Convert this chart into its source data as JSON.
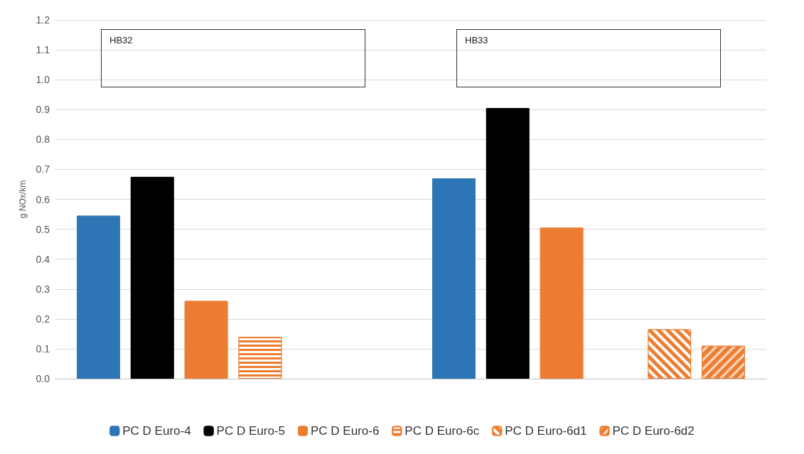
{
  "chart_data": {
    "type": "bar",
    "ylabel": "g NOx/km",
    "categories": [
      null,
      null
    ],
    "annotations": [
      "HB32",
      "HB33"
    ],
    "series": [
      {
        "name": "PC D Euro-4",
        "color": "#2e75b6",
        "values": [
          0.545,
          0.67
        ]
      },
      {
        "name": "PC D Euro-5",
        "color": "#000000",
        "values": [
          0.675,
          0.905
        ]
      },
      {
        "name": "PC D Euro-6",
        "color": "#ed7d31",
        "values": [
          0.26,
          0.505
        ]
      },
      {
        "name": "PC D Euro-6c",
        "color": "#ed7d31",
        "values": [
          0.14,
          null
        ]
      },
      {
        "name": "PC D Euro-6d1",
        "color": "#ed7d31",
        "values": [
          null,
          0.165
        ]
      },
      {
        "name": "PC D Euro-6d2",
        "color": "#ed7d31",
        "values": [
          null,
          0.11
        ]
      }
    ],
    "ylim": [
      0,
      1.2
    ],
    "yticks": [
      {
        "value": 0,
        "label": "0.0"
      },
      {
        "value": 0.1,
        "label": "0.1"
      },
      {
        "value": 0.2,
        "label": "0.2"
      },
      {
        "value": 0.3,
        "label": "0.3"
      },
      {
        "value": 0.4,
        "label": "0.4"
      },
      {
        "value": 0.5,
        "label": "0.5"
      },
      {
        "value": 0.6,
        "label": "0.6"
      },
      {
        "value": 0.7,
        "label": "0.7"
      },
      {
        "value": 0.8,
        "label": "0.8"
      },
      {
        "value": 0.9,
        "label": "0.9"
      },
      {
        "value": 1,
        "label": "1.0"
      },
      {
        "value": 1.1,
        "label": "1.1"
      },
      {
        "value": 1.2,
        "label": "1.2"
      }
    ],
    "grid": "y",
    "legend": "bottom"
  }
}
